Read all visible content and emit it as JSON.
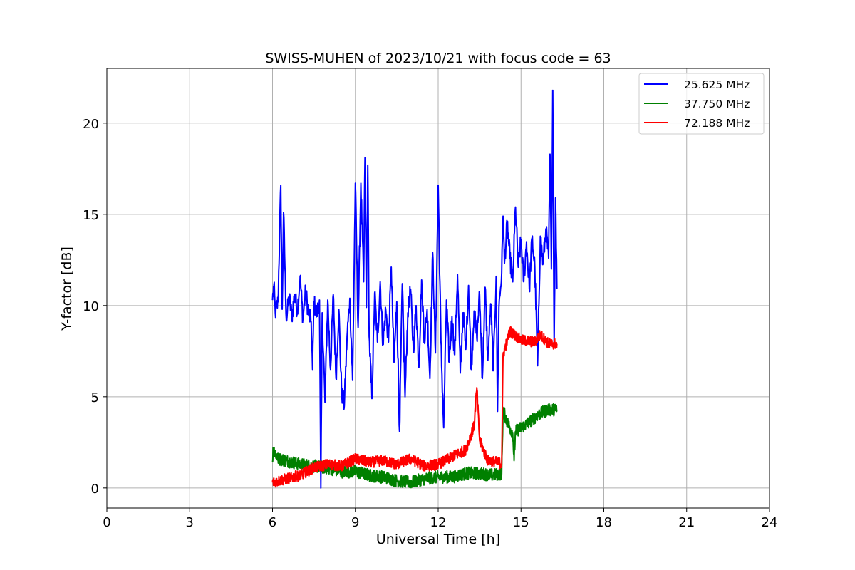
{
  "chart_data": {
    "type": "line",
    "title": "SWISS-MUHEN of 2023/10/21 with focus code = 63",
    "xlabel": "Universal Time [h]",
    "ylabel": "Y-factor [dB]",
    "xlim": [
      0,
      24
    ],
    "ylim": [
      -1.1,
      23
    ],
    "xticks": [
      0,
      3,
      6,
      9,
      12,
      15,
      18,
      21,
      24
    ],
    "yticks": [
      0,
      5,
      10,
      15,
      20
    ],
    "grid": true,
    "legend_position": "top-right",
    "series": [
      {
        "name": "25.625 MHz",
        "color": "#0000ff",
        "keypoints": [
          [
            6.0,
            10.3
          ],
          [
            6.05,
            11.1
          ],
          [
            6.1,
            9.6
          ],
          [
            6.2,
            10.2
          ],
          [
            6.3,
            16.6
          ],
          [
            6.35,
            9.8
          ],
          [
            6.4,
            15.1
          ],
          [
            6.5,
            9.2
          ],
          [
            6.6,
            10.5
          ],
          [
            6.7,
            9.4
          ],
          [
            6.8,
            10.6
          ],
          [
            6.9,
            9.7
          ],
          [
            7.0,
            11.6
          ],
          [
            7.1,
            9.3
          ],
          [
            7.2,
            10.8
          ],
          [
            7.3,
            9.6
          ],
          [
            7.4,
            9.1
          ],
          [
            7.45,
            6.5
          ],
          [
            7.5,
            10.2
          ],
          [
            7.6,
            9.5
          ],
          [
            7.7,
            10.3
          ],
          [
            7.75,
            0.0
          ],
          [
            7.8,
            9.6
          ],
          [
            7.9,
            4.7
          ],
          [
            8.0,
            10.3
          ],
          [
            8.1,
            6.5
          ],
          [
            8.2,
            10.6
          ],
          [
            8.3,
            6.0
          ],
          [
            8.4,
            9.8
          ],
          [
            8.5,
            5.3
          ],
          [
            8.6,
            4.5
          ],
          [
            8.7,
            8.3
          ],
          [
            8.8,
            10.4
          ],
          [
            8.9,
            5.9
          ],
          [
            9.0,
            16.7
          ],
          [
            9.1,
            8.8
          ],
          [
            9.2,
            16.7
          ],
          [
            9.3,
            11.3
          ],
          [
            9.35,
            18.1
          ],
          [
            9.4,
            9.9
          ],
          [
            9.45,
            17.7
          ],
          [
            9.5,
            8.3
          ],
          [
            9.6,
            4.9
          ],
          [
            9.7,
            10.7
          ],
          [
            9.8,
            8.0
          ],
          [
            9.9,
            11.3
          ],
          [
            10.0,
            7.9
          ],
          [
            10.1,
            9.8
          ],
          [
            10.2,
            8.0
          ],
          [
            10.3,
            12.1
          ],
          [
            10.4,
            6.9
          ],
          [
            10.5,
            10.2
          ],
          [
            10.6,
            3.1
          ],
          [
            10.7,
            11.2
          ],
          [
            10.8,
            5.0
          ],
          [
            10.9,
            9.6
          ],
          [
            11.0,
            10.9
          ],
          [
            11.1,
            7.6
          ],
          [
            11.2,
            10.0
          ],
          [
            11.3,
            6.6
          ],
          [
            11.4,
            11.4
          ],
          [
            11.5,
            8.1
          ],
          [
            11.6,
            9.8
          ],
          [
            11.7,
            6.0
          ],
          [
            11.8,
            12.9
          ],
          [
            11.9,
            7.4
          ],
          [
            12.0,
            16.6
          ],
          [
            12.1,
            8.0
          ],
          [
            12.2,
            3.3
          ],
          [
            12.3,
            10.3
          ],
          [
            12.4,
            6.9
          ],
          [
            12.5,
            9.4
          ],
          [
            12.6,
            7.3
          ],
          [
            12.7,
            11.7
          ],
          [
            12.8,
            6.3
          ],
          [
            12.9,
            9.6
          ],
          [
            13.0,
            7.6
          ],
          [
            13.1,
            11.1
          ],
          [
            13.2,
            6.5
          ],
          [
            13.3,
            9.7
          ],
          [
            13.4,
            8.2
          ],
          [
            13.5,
            10.6
          ],
          [
            13.6,
            6.0
          ],
          [
            13.7,
            11.0
          ],
          [
            13.8,
            7.0
          ],
          [
            13.9,
            10.1
          ],
          [
            14.0,
            6.5
          ],
          [
            14.1,
            11.6
          ],
          [
            14.15,
            4.2
          ],
          [
            14.2,
            9.9
          ],
          [
            14.3,
            11.8
          ],
          [
            14.35,
            14.9
          ],
          [
            14.4,
            12.3
          ],
          [
            14.5,
            14.5
          ],
          [
            14.6,
            12.6
          ],
          [
            14.7,
            11.3
          ],
          [
            14.8,
            15.4
          ],
          [
            14.9,
            12.1
          ],
          [
            15.0,
            13.6
          ],
          [
            15.1,
            11.3
          ],
          [
            15.2,
            13.5
          ],
          [
            15.3,
            10.9
          ],
          [
            15.4,
            13.7
          ],
          [
            15.5,
            12.1
          ],
          [
            15.6,
            6.7
          ],
          [
            15.7,
            13.8
          ],
          [
            15.8,
            12.3
          ],
          [
            15.9,
            14.2
          ],
          [
            16.0,
            12.6
          ],
          [
            16.05,
            18.3
          ],
          [
            16.1,
            12.0
          ],
          [
            16.15,
            21.8
          ],
          [
            16.2,
            7.8
          ],
          [
            16.25,
            15.9
          ],
          [
            16.3,
            10.9
          ]
        ]
      },
      {
        "name": "37.750 MHz",
        "color": "#008000",
        "keypoints": [
          [
            6.0,
            1.4
          ],
          [
            6.02,
            2.2
          ],
          [
            6.2,
            1.6
          ],
          [
            6.5,
            1.5
          ],
          [
            7.0,
            1.3
          ],
          [
            7.5,
            1.2
          ],
          [
            8.0,
            1.1
          ],
          [
            8.5,
            0.9
          ],
          [
            9.0,
            0.9
          ],
          [
            9.5,
            0.7
          ],
          [
            10.0,
            0.6
          ],
          [
            10.5,
            0.4
          ],
          [
            11.0,
            0.3
          ],
          [
            11.5,
            0.5
          ],
          [
            12.0,
            0.6
          ],
          [
            12.5,
            0.6
          ],
          [
            13.0,
            0.8
          ],
          [
            13.5,
            0.8
          ],
          [
            14.0,
            0.7
          ],
          [
            14.3,
            0.8
          ],
          [
            14.35,
            4.3
          ],
          [
            14.5,
            3.6
          ],
          [
            14.7,
            3.0
          ],
          [
            14.75,
            1.5
          ],
          [
            14.8,
            3.1
          ],
          [
            15.0,
            3.3
          ],
          [
            15.3,
            3.6
          ],
          [
            15.6,
            4.0
          ],
          [
            16.0,
            4.3
          ],
          [
            16.3,
            4.3
          ]
        ]
      },
      {
        "name": "72.188 MHz",
        "color": "#ff0000",
        "keypoints": [
          [
            6.0,
            0.3
          ],
          [
            6.5,
            0.5
          ],
          [
            7.0,
            0.7
          ],
          [
            7.5,
            1.1
          ],
          [
            8.0,
            1.3
          ],
          [
            8.5,
            1.2
          ],
          [
            9.0,
            1.6
          ],
          [
            9.5,
            1.4
          ],
          [
            10.0,
            1.5
          ],
          [
            10.5,
            1.3
          ],
          [
            11.0,
            1.6
          ],
          [
            11.5,
            1.2
          ],
          [
            12.0,
            1.3
          ],
          [
            12.5,
            1.7
          ],
          [
            13.0,
            2.1
          ],
          [
            13.3,
            3.4
          ],
          [
            13.4,
            5.5
          ],
          [
            13.5,
            2.6
          ],
          [
            13.8,
            1.5
          ],
          [
            14.2,
            1.4
          ],
          [
            14.3,
            1.3
          ],
          [
            14.35,
            7.3
          ],
          [
            14.5,
            8.1
          ],
          [
            14.6,
            8.6
          ],
          [
            15.0,
            8.1
          ],
          [
            15.5,
            8.0
          ],
          [
            15.7,
            8.4
          ],
          [
            16.0,
            7.9
          ],
          [
            16.3,
            7.9
          ]
        ]
      }
    ]
  }
}
